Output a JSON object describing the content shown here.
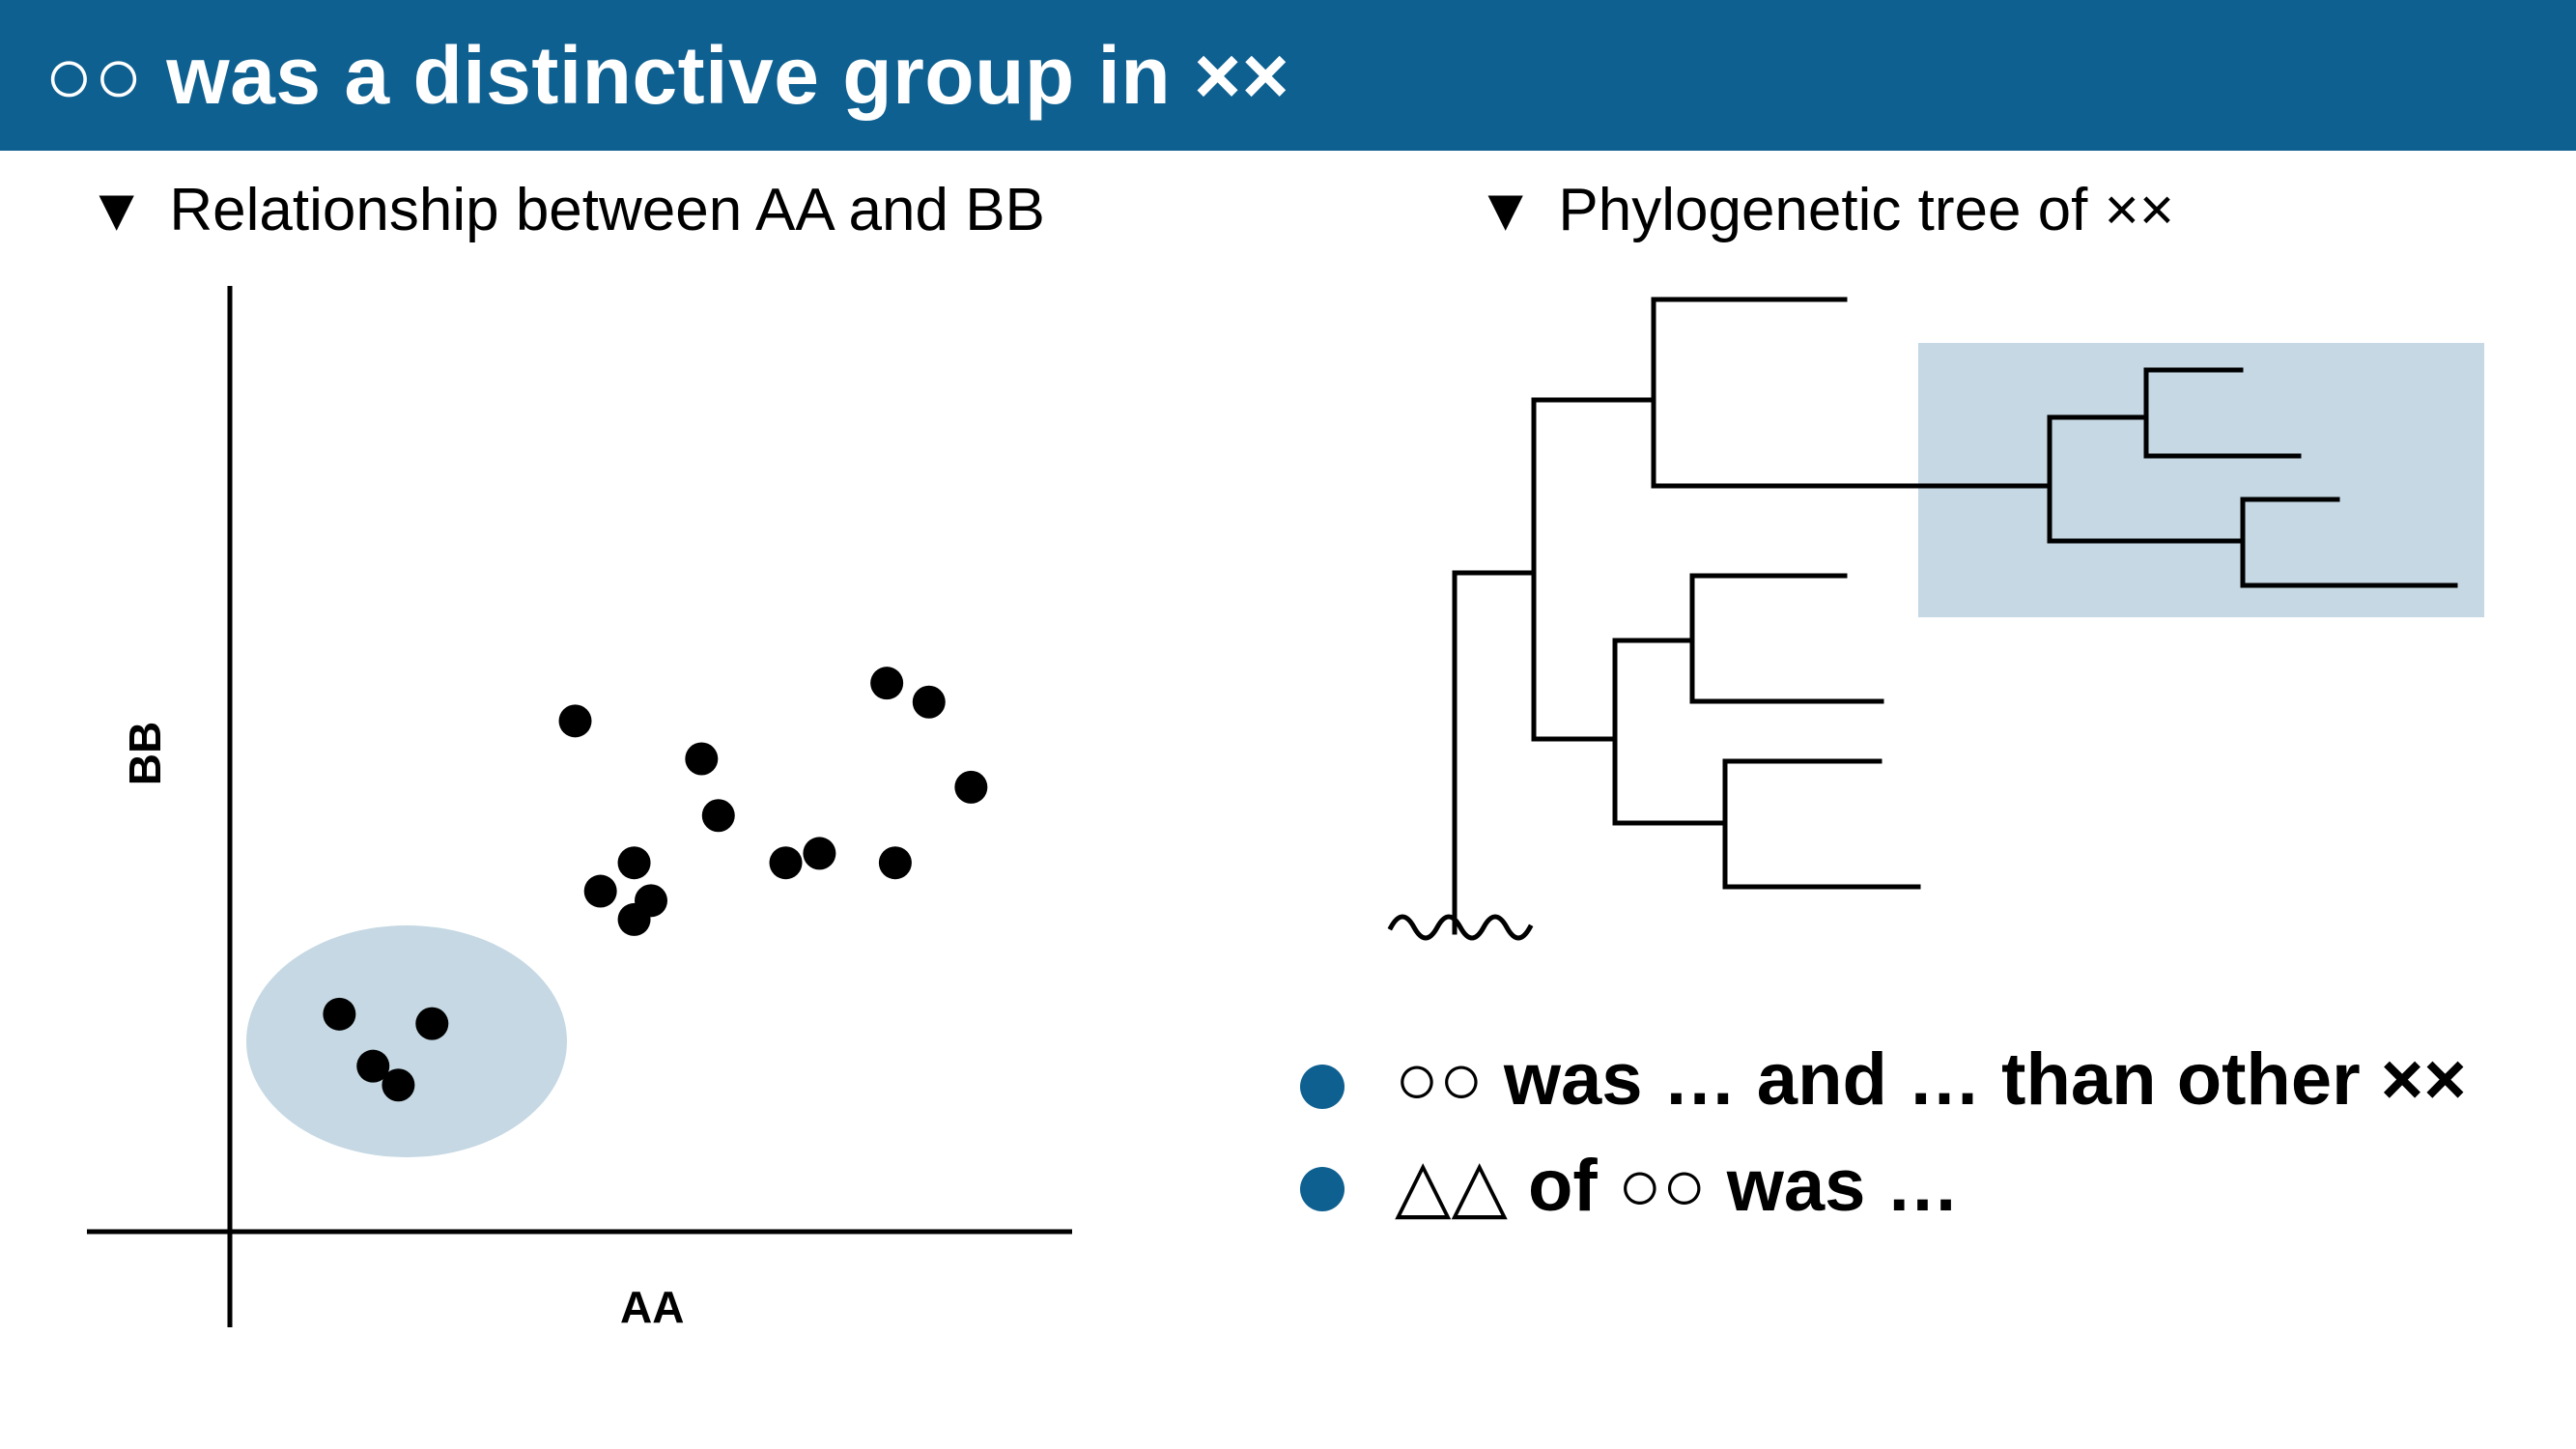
{
  "slide": {
    "title": "○○ was a distinctive group in ××",
    "accent_color": "#0e6091",
    "highlight_color": "#c5d8e3"
  },
  "scatter": {
    "heading_marker": "▼",
    "heading": "Relationship between AA and BB",
    "xlabel": "AA",
    "ylabel": "BB",
    "highlighted_group": "ellipse around lower-left cluster"
  },
  "tree": {
    "heading_marker": "▼",
    "heading": "Phylogenetic tree of ××",
    "highlighted_clade": "upper-right clade (4 tips)",
    "root_symbol": "wavy-line"
  },
  "bullets": [
    {
      "text": "○○ was … and … than other ××"
    },
    {
      "text": "△△ of ○○ was …"
    }
  ],
  "chart_data": {
    "type": "scatter",
    "title": "Relationship between AA and BB",
    "xlabel": "AA",
    "ylabel": "BB",
    "series": [
      {
        "name": "",
        "highlighted": true,
        "points": [
          {
            "x": 1.3,
            "y": 2.3
          },
          {
            "x": 1.7,
            "y": 1.75
          },
          {
            "x": 2.0,
            "y": 1.55
          },
          {
            "x": 2.4,
            "y": 2.2
          }
        ]
      },
      {
        "name": "",
        "highlighted": false,
        "points": [
          {
            "x": 4.1,
            "y": 5.4
          },
          {
            "x": 4.4,
            "y": 3.6
          },
          {
            "x": 4.8,
            "y": 3.3
          },
          {
            "x": 4.8,
            "y": 3.9
          },
          {
            "x": 5.0,
            "y": 3.5
          },
          {
            "x": 5.6,
            "y": 5.0
          },
          {
            "x": 5.8,
            "y": 4.4
          },
          {
            "x": 6.6,
            "y": 3.9
          },
          {
            "x": 7.0,
            "y": 4.0
          },
          {
            "x": 7.8,
            "y": 5.8
          },
          {
            "x": 7.9,
            "y": 3.9
          },
          {
            "x": 8.3,
            "y": 5.6
          },
          {
            "x": 8.8,
            "y": 4.7
          }
        ]
      }
    ],
    "xlim": [
      0,
      10
    ],
    "ylim": [
      0,
      10
    ],
    "grid": false,
    "legend": "none"
  }
}
